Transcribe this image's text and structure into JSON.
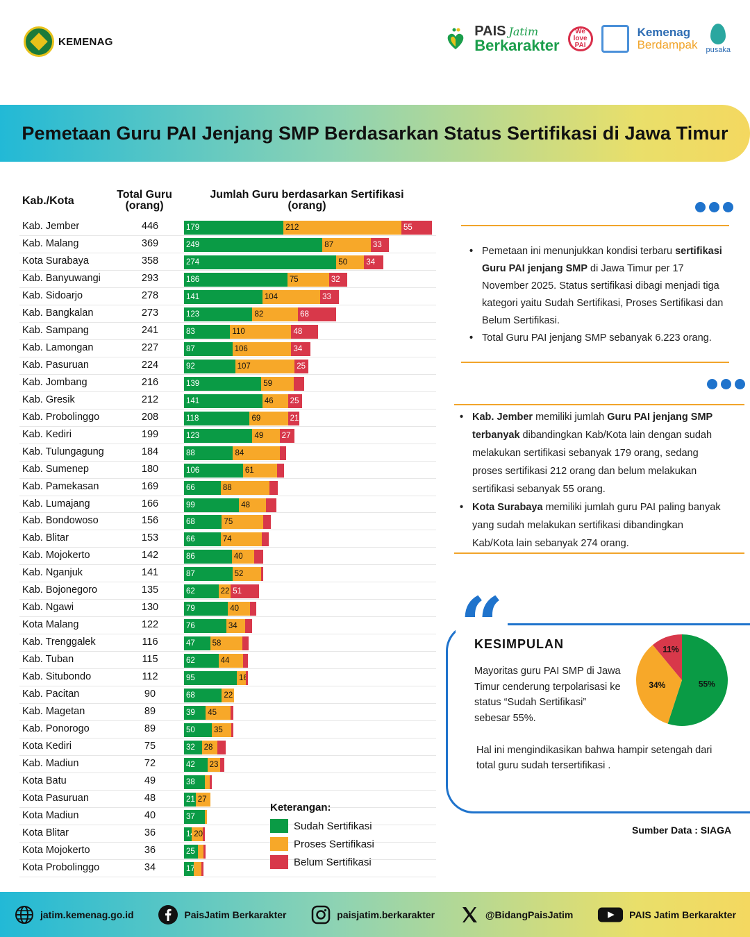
{
  "header": {
    "brand": "KEMENAG",
    "pais_top": "PAIS",
    "pais_script": "Jatim",
    "pais_bottom": "Berkarakter",
    "welove": "We love PAI",
    "kemenag_berdampak_1": "Kemenag",
    "kemenag_berdampak_2": "Berdampak",
    "pusaka": "pusaka"
  },
  "title": "Pemetaan Guru PAI Jenjang SMP Berdasarkan Status Sertifikasi di Jawa Timur",
  "table_headers": {
    "region": "Kab./Kota",
    "total_line1": "Total Guru",
    "total_line2": "(orang)",
    "cert_line1": "Jumlah Guru berdasarkan Sertifikasi",
    "cert_line2": "(orang)"
  },
  "colors": {
    "sudah": "#0a9b45",
    "proses": "#f7a829",
    "belum": "#d8384a",
    "accent": "#1f73cc"
  },
  "chart_data": {
    "type": "bar",
    "orientation": "horizontal-stacked",
    "title": "Jumlah Guru berdasarkan Sertifikasi (orang)",
    "series_names": [
      "Sudah Sertifikasi",
      "Proses Sertifikasi",
      "Belum Sertifikasi"
    ],
    "rows": [
      {
        "name": "Kab. Jember",
        "total": 446,
        "sudah": 179,
        "proses": 212,
        "belum": 55
      },
      {
        "name": "Kab. Malang",
        "total": 369,
        "sudah": 249,
        "proses": 87,
        "belum": 33
      },
      {
        "name": "Kota Surabaya",
        "total": 358,
        "sudah": 274,
        "proses": 50,
        "belum": 34
      },
      {
        "name": "Kab. Banyuwangi",
        "total": 293,
        "sudah": 186,
        "proses": 75,
        "belum": 32
      },
      {
        "name": "Kab. Sidoarjo",
        "total": 278,
        "sudah": 141,
        "proses": 104,
        "belum": 33
      },
      {
        "name": "Kab. Bangkalan",
        "total": 273,
        "sudah": 123,
        "proses": 82,
        "belum": 68
      },
      {
        "name": "Kab. Sampang",
        "total": 241,
        "sudah": 83,
        "proses": 110,
        "belum": 48
      },
      {
        "name": "Kab. Lamongan",
        "total": 227,
        "sudah": 87,
        "proses": 106,
        "belum": 34
      },
      {
        "name": "Kab. Pasuruan",
        "total": 224,
        "sudah": 92,
        "proses": 107,
        "belum": 25
      },
      {
        "name": "Kab. Jombang",
        "total": 216,
        "sudah": 139,
        "proses": 59,
        "belum": 18
      },
      {
        "name": "Kab. Gresik",
        "total": 212,
        "sudah": 141,
        "proses": 46,
        "belum": 25
      },
      {
        "name": "Kab. Probolinggo",
        "total": 208,
        "sudah": 118,
        "proses": 69,
        "belum": 21
      },
      {
        "name": "Kab. Kediri",
        "total": 199,
        "sudah": 123,
        "proses": 49,
        "belum": 27
      },
      {
        "name": "Kab. Tulungagung",
        "total": 184,
        "sudah": 88,
        "proses": 84,
        "belum": 12
      },
      {
        "name": "Kab. Sumenep",
        "total": 180,
        "sudah": 106,
        "proses": 61,
        "belum": 13
      },
      {
        "name": "Kab. Pamekasan",
        "total": 169,
        "sudah": 66,
        "proses": 88,
        "belum": 15
      },
      {
        "name": "Kab. Lumajang",
        "total": 166,
        "sudah": 99,
        "proses": 48,
        "belum": 19
      },
      {
        "name": "Kab. Bondowoso",
        "total": 156,
        "sudah": 68,
        "proses": 75,
        "belum": 13
      },
      {
        "name": "Kab. Blitar",
        "total": 153,
        "sudah": 66,
        "proses": 74,
        "belum": 13
      },
      {
        "name": "Kab. Mojokerto",
        "total": 142,
        "sudah": 86,
        "proses": 40,
        "belum": 16
      },
      {
        "name": "Kab. Nganjuk",
        "total": 141,
        "sudah": 87,
        "proses": 52,
        "belum": 2
      },
      {
        "name": "Kab. Bojonegoro",
        "total": 135,
        "sudah": 62,
        "proses": 22,
        "belum": 51
      },
      {
        "name": "Kab. Ngawi",
        "total": 130,
        "sudah": 79,
        "proses": 40,
        "belum": 11
      },
      {
        "name": "Kota Malang",
        "total": 122,
        "sudah": 76,
        "proses": 34,
        "belum": 12
      },
      {
        "name": "Kab. Trenggalek",
        "total": 116,
        "sudah": 47,
        "proses": 58,
        "belum": 11
      },
      {
        "name": "Kab. Tuban",
        "total": 115,
        "sudah": 62,
        "proses": 44,
        "belum": 9
      },
      {
        "name": "Kab. Situbondo",
        "total": 112,
        "sudah": 95,
        "proses": 16,
        "belum": 1
      },
      {
        "name": "Kab. Pacitan",
        "total": 90,
        "sudah": 68,
        "proses": 22,
        "belum": 0
      },
      {
        "name": "Kab. Magetan",
        "total": 89,
        "sudah": 39,
        "proses": 45,
        "belum": 5
      },
      {
        "name": "Kab. Ponorogo",
        "total": 89,
        "sudah": 50,
        "proses": 35,
        "belum": 4
      },
      {
        "name": "Kota Kediri",
        "total": 75,
        "sudah": 32,
        "proses": 28,
        "belum": 15
      },
      {
        "name": "Kab. Madiun",
        "total": 72,
        "sudah": 42,
        "proses": 23,
        "belum": 7
      },
      {
        "name": "Kota Batu",
        "total": 49,
        "sudah": 38,
        "proses": 8,
        "belum": 3
      },
      {
        "name": "Kota Pasuruan",
        "total": 48,
        "sudah": 21,
        "proses": 27,
        "belum": 0
      },
      {
        "name": "Kota Madiun",
        "total": 40,
        "sudah": 37,
        "proses": 3,
        "belum": 0
      },
      {
        "name": "Kota Blitar",
        "total": 36,
        "sudah": 14,
        "proses": 20,
        "belum": 2
      },
      {
        "name": "Kota Mojokerto",
        "total": 36,
        "sudah": 25,
        "proses": 10,
        "belum": 1
      },
      {
        "name": "Kota Probolinggo",
        "total": 34,
        "sudah": 17,
        "proses": 14,
        "belum": 3
      }
    ],
    "label_min": {
      "sudah": 10,
      "proses": 15,
      "belum": 21
    },
    "pie": {
      "type": "pie",
      "slices": [
        {
          "label": "55%",
          "value": 55,
          "category": "Sudah Sertifikasi"
        },
        {
          "label": "34%",
          "value": 34,
          "category": "Proses Sertifikasi"
        },
        {
          "label": "11%",
          "value": 11,
          "category": "Belum Sertifikasi"
        }
      ]
    }
  },
  "legend": {
    "title": "Keterangan:",
    "items": [
      "Sudah Sertifikasi",
      "Proses Sertifikasi",
      "Belum Sertifikasi"
    ]
  },
  "notes1": {
    "b1_pre": "Pemetaan ini menunjukkan kondisi terbaru ",
    "b1_bold": "sertifikasi Guru PAI jenjang SMP",
    "b1_post": " di Jawa Timur per 17 November 2025. Status sertifikasi dibagi menjadi tiga kategori yaitu Sudah Sertifikasi, Proses Sertifikasi dan Belum Sertifikasi.",
    "b2": "Total Guru PAI jenjang SMP sebanyak 6.223 orang."
  },
  "notes2": {
    "b1_bold1": "Kab. Jember",
    "b1_mid": " memiliki jumlah ",
    "b1_bold2": "Guru PAI jenjang SMP terbanyak",
    "b1_post": " dibandingkan Kab/Kota lain dengan sudah melakukan sertifikasi sebanyak 179 orang, sedang proses sertifikasi 212 orang dan belum melakukan sertifikasi sebanyak 55 orang.",
    "b2_bold": "Kota Surabaya",
    "b2_post": " memiliki jumlah guru PAI paling banyak yang sudah melakukan sertifikasi dibandingkan Kab/Kota lain sebanyak 274 orang."
  },
  "kesimpulan": {
    "title": "KESIMPULAN",
    "text1": "Mayoritas guru PAI SMP di Jawa Timur cenderung terpolarisasi ke status “Sudah Sertifikasi” sebesar 55%.",
    "text2": "Hal ini mengindikasikan bahwa hampir setengah dari total guru sudah tersertifikasi ."
  },
  "source": "Sumber Data : SIAGA",
  "footer": {
    "web": "jatim.kemenag.go.id",
    "facebook": "PaisJatim Berkarakter",
    "instagram": "paisjatim.berkarakter",
    "x": "@BidangPaisJatim",
    "youtube": "PAIS Jatim Berkarakter"
  }
}
